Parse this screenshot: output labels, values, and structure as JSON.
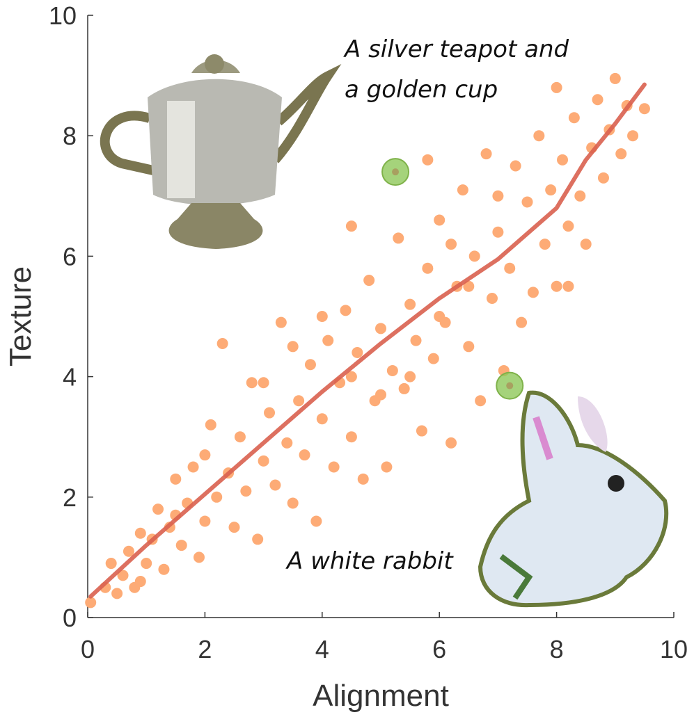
{
  "chart_data": {
    "type": "scatter",
    "xlabel": "Alignment",
    "ylabel": "Texture",
    "xlim": [
      0,
      10
    ],
    "ylim": [
      0,
      10
    ],
    "xticks": [
      0,
      2,
      4,
      6,
      8,
      10
    ],
    "yticks": [
      0,
      2,
      4,
      6,
      8,
      10
    ],
    "annotations": [
      "A silver teapot and",
      "a golden cup",
      "A white rabbit"
    ],
    "series": [
      {
        "color": "#fdab76",
        "x": [
          0.05,
          0.3,
          0.4,
          0.5,
          0.6,
          0.7,
          0.8,
          0.9,
          1.0,
          1.1,
          1.2,
          1.3,
          1.4,
          1.5,
          1.6,
          1.7,
          1.8,
          1.9,
          2.0,
          2.1,
          2.2,
          2.3,
          2.4,
          2.5,
          2.6,
          2.7,
          2.8,
          2.9,
          3.0,
          3.1,
          3.2,
          3.3,
          3.4,
          3.5,
          3.6,
          3.7,
          3.8,
          3.9,
          4.0,
          4.1,
          4.2,
          4.3,
          4.4,
          4.5,
          4.6,
          4.7,
          4.8,
          4.9,
          5.0,
          5.1,
          5.2,
          5.3,
          5.4,
          5.5,
          5.6,
          5.7,
          5.8,
          5.9,
          6.0,
          6.1,
          6.2,
          6.3,
          6.4,
          6.5,
          6.6,
          6.7,
          6.8,
          6.9,
          7.0,
          7.1,
          7.2,
          7.3,
          7.4,
          7.5,
          7.6,
          7.7,
          7.8,
          7.9,
          8.0,
          8.1,
          8.2,
          8.3,
          8.4,
          8.5,
          8.6,
          8.7,
          8.8,
          8.9,
          9.0,
          9.1,
          9.2,
          9.3,
          9.5,
          4.0,
          3.5,
          5.0,
          6.0,
          7.0,
          2.0,
          1.5,
          0.9,
          4.5,
          5.5,
          6.5,
          8.0,
          5.8,
          4.5,
          8.2,
          3.0,
          6.2
        ],
        "values": [
          0.25,
          0.5,
          0.9,
          0.4,
          0.7,
          1.1,
          0.5,
          1.4,
          0.9,
          1.3,
          1.8,
          0.8,
          1.5,
          2.3,
          1.2,
          1.9,
          2.5,
          1.0,
          1.6,
          3.2,
          2.0,
          4.55,
          2.4,
          1.5,
          3.0,
          2.1,
          3.9,
          1.3,
          2.6,
          3.4,
          2.2,
          4.9,
          2.9,
          1.9,
          3.6,
          2.7,
          4.2,
          1.6,
          3.3,
          4.6,
          2.5,
          3.9,
          5.1,
          3.0,
          4.4,
          2.3,
          5.6,
          3.6,
          4.8,
          2.5,
          4.1,
          6.3,
          3.8,
          5.2,
          4.6,
          3.1,
          5.8,
          4.3,
          6.6,
          4.9,
          2.9,
          5.5,
          7.1,
          4.5,
          6.0,
          3.6,
          7.7,
          5.3,
          6.4,
          4.1,
          5.8,
          7.5,
          4.9,
          6.9,
          5.4,
          8.0,
          6.2,
          7.1,
          5.5,
          7.6,
          6.5,
          8.3,
          7.0,
          6.2,
          7.8,
          8.6,
          7.3,
          8.1,
          8.95,
          7.7,
          8.5,
          8.0,
          8.45,
          5.0,
          4.5,
          3.7,
          5.0,
          7.0,
          2.7,
          1.7,
          0.6,
          4.0,
          4.0,
          5.5,
          8.8,
          7.6,
          6.5,
          5.5,
          3.9,
          6.2
        ]
      },
      {
        "color": "#8fc85a",
        "x": [
          5.25,
          7.2
        ],
        "values": [
          7.4,
          3.85
        ]
      },
      {
        "type": "line",
        "color": "#d9604f",
        "x": [
          0.05,
          1,
          2,
          3,
          4,
          5,
          6,
          7,
          8,
          8.5,
          9,
          9.5
        ],
        "values": [
          0.35,
          1.2,
          2.05,
          2.9,
          3.75,
          4.55,
          5.3,
          5.95,
          6.8,
          7.6,
          8.2,
          8.85
        ]
      }
    ]
  }
}
